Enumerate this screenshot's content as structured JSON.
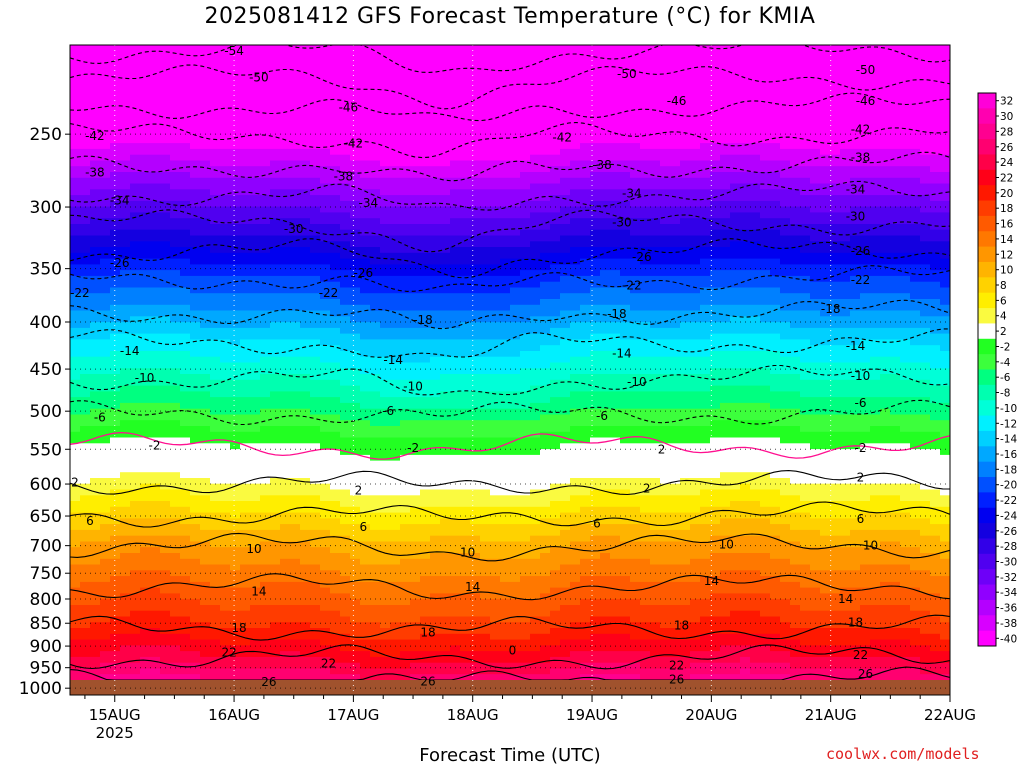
{
  "chart_data": {
    "type": "heatmap",
    "title": "2025081412 GFS Forecast Temperature (°C) for KMIA",
    "xlabel": "Forecast Time (UTC)",
    "credit": "coolwx.com/models",
    "x_ticks": [
      {
        "label": "15AUG",
        "sublabel": "2025",
        "t": 0
      },
      {
        "label": "16AUG",
        "sublabel": "",
        "t": 24
      },
      {
        "label": "17AUG",
        "sublabel": "",
        "t": 48
      },
      {
        "label": "18AUG",
        "sublabel": "",
        "t": 72
      },
      {
        "label": "19AUG",
        "sublabel": "",
        "t": 96
      },
      {
        "label": "20AUG",
        "sublabel": "",
        "t": 120
      },
      {
        "label": "21AUG",
        "sublabel": "",
        "t": 144
      },
      {
        "label": "22AUG",
        "sublabel": "",
        "t": 168
      }
    ],
    "x_range_hours_since_first_tick": [
      -9,
      168
    ],
    "y_axis": "pressure (hPa)",
    "y_ticks": [
      250,
      300,
      350,
      400,
      450,
      500,
      550,
      600,
      650,
      700,
      750,
      800,
      850,
      900,
      950,
      1000
    ],
    "y_range": [
      200,
      1030
    ],
    "log_scale_y": true,
    "grid": "dotted",
    "colorbar": {
      "labels": [
        "32",
        "30",
        "28",
        "26",
        "24",
        "22",
        "20",
        "18",
        "16",
        "14",
        "12",
        "10",
        "8",
        "6",
        "4",
        "2",
        "-2",
        "-4",
        "-6",
        "-8",
        "-10",
        "-12",
        "-14",
        "-16",
        "-18",
        "-20",
        "-22",
        "-24",
        "-26",
        "-28",
        "-30",
        "-32",
        "-34",
        "-36",
        "-38",
        "-40"
      ],
      "colors": [
        "#ff00d8",
        "#ff00b0",
        "#ff0090",
        "#ff0070",
        "#ff0048",
        "#ff0018",
        "#ff1800",
        "#ff3c00",
        "#ff5a00",
        "#ff7800",
        "#ff9600",
        "#ffb400",
        "#ffd200",
        "#ffee00",
        "#fafa40",
        "#ffffff",
        "#22ff22",
        "#3cff3c",
        "#00ff80",
        "#00ffb0",
        "#00ffd8",
        "#00f0ff",
        "#00d0ff",
        "#00a8ff",
        "#0080ff",
        "#0050ff",
        "#0020ff",
        "#0000f0",
        "#1400e0",
        "#3200e8",
        "#5000f0",
        "#6e00f8",
        "#9000ff",
        "#b400ff",
        "#d800ff",
        "#ff00ff"
      ]
    },
    "isotherm_levels_hpa": [
      {
        "temp": 26,
        "p": 980
      },
      {
        "temp": 22,
        "p": 925
      },
      {
        "temp": 18,
        "p": 860
      },
      {
        "temp": 14,
        "p": 775
      },
      {
        "temp": 10,
        "p": 700
      },
      {
        "temp": 6,
        "p": 648
      },
      {
        "temp": 2,
        "p": 598
      },
      {
        "temp": -2,
        "p": 545
      },
      {
        "temp": -6,
        "p": 502
      },
      {
        "temp": -10,
        "p": 460
      },
      {
        "temp": -14,
        "p": 420
      },
      {
        "temp": -18,
        "p": 390
      },
      {
        "temp": -22,
        "p": 358
      },
      {
        "temp": -26,
        "p": 335
      },
      {
        "temp": -30,
        "p": 312
      },
      {
        "temp": -34,
        "p": 290
      },
      {
        "temp": -38,
        "p": 270
      },
      {
        "temp": -42,
        "p": 250
      },
      {
        "temp": -46,
        "p": 233
      },
      {
        "temp": -50,
        "p": 217
      },
      {
        "temp": -54,
        "p": 203
      }
    ],
    "colorbar_labels": [
      "32",
      "30",
      "28",
      "26",
      "24",
      "22",
      "20",
      "18",
      "16",
      "14",
      "12",
      "10",
      "8",
      "6",
      "4",
      "2",
      "-2",
      "-4",
      "-6",
      "-8",
      "-10",
      "-12",
      "-14",
      "-16",
      "-18",
      "-20",
      "-22",
      "-24",
      "-26",
      "-28",
      "-30",
      "-32",
      "-34",
      "-36",
      "-38",
      "-40"
    ],
    "contour_labels": [
      {
        "text": "-54",
        "t": 24,
        "p": 203
      },
      {
        "text": "-50",
        "t": 29,
        "p": 217
      },
      {
        "text": "-50",
        "t": 103,
        "p": 215
      },
      {
        "text": "-50",
        "t": 151,
        "p": 213
      },
      {
        "text": "-46",
        "t": 47,
        "p": 234
      },
      {
        "text": "-46",
        "t": 113,
        "p": 230
      },
      {
        "text": "-46",
        "t": 151,
        "p": 230
      },
      {
        "text": "-42",
        "t": -4,
        "p": 251
      },
      {
        "text": "-42",
        "t": 48,
        "p": 256
      },
      {
        "text": "-42",
        "t": 90,
        "p": 252
      },
      {
        "text": "-42",
        "t": 150,
        "p": 247
      },
      {
        "text": "-38",
        "t": -4,
        "p": 275
      },
      {
        "text": "-38",
        "t": 46,
        "p": 278
      },
      {
        "text": "-38",
        "t": 98,
        "p": 270
      },
      {
        "text": "-38",
        "t": 150,
        "p": 265
      },
      {
        "text": "-34",
        "t": 1,
        "p": 295
      },
      {
        "text": "-34",
        "t": 51,
        "p": 297
      },
      {
        "text": "-34",
        "t": 104,
        "p": 290
      },
      {
        "text": "-34",
        "t": 149,
        "p": 287
      },
      {
        "text": "-30",
        "t": 36,
        "p": 317
      },
      {
        "text": "-30",
        "t": 102,
        "p": 312
      },
      {
        "text": "-30",
        "t": 149,
        "p": 307
      },
      {
        "text": "-26",
        "t": 1,
        "p": 345
      },
      {
        "text": "-26",
        "t": 50,
        "p": 354
      },
      {
        "text": "-26",
        "t": 106,
        "p": 340
      },
      {
        "text": "-26",
        "t": 150,
        "p": 335
      },
      {
        "text": "-22",
        "t": -7,
        "p": 372
      },
      {
        "text": "-22",
        "t": 43,
        "p": 372
      },
      {
        "text": "-22",
        "t": 104,
        "p": 365
      },
      {
        "text": "-22",
        "t": 150,
        "p": 360
      },
      {
        "text": "-18",
        "t": 62,
        "p": 398
      },
      {
        "text": "-18",
        "t": 101,
        "p": 392
      },
      {
        "text": "-18",
        "t": 144,
        "p": 387
      },
      {
        "text": "-14",
        "t": 3,
        "p": 430
      },
      {
        "text": "-14",
        "t": 56,
        "p": 440
      },
      {
        "text": "-14",
        "t": 102,
        "p": 433
      },
      {
        "text": "-14",
        "t": 149,
        "p": 425
      },
      {
        "text": "-10",
        "t": 6,
        "p": 460
      },
      {
        "text": "-10",
        "t": 60,
        "p": 470
      },
      {
        "text": "-10",
        "t": 105,
        "p": 465
      },
      {
        "text": "-10",
        "t": 150,
        "p": 458
      },
      {
        "text": "-6",
        "t": -3,
        "p": 508
      },
      {
        "text": "-6",
        "t": 55,
        "p": 500
      },
      {
        "text": "-6",
        "t": 98,
        "p": 506
      },
      {
        "text": "-6",
        "t": 150,
        "p": 490
      },
      {
        "text": "-2",
        "t": 8,
        "p": 545
      },
      {
        "text": "-2",
        "t": 60,
        "p": 548
      },
      {
        "text": "2",
        "t": 110,
        "p": 550
      },
      {
        "text": "-2",
        "t": 150,
        "p": 548
      },
      {
        "text": "2",
        "t": -8,
        "p": 598
      },
      {
        "text": "2",
        "t": 49,
        "p": 610
      },
      {
        "text": "2",
        "t": 107,
        "p": 607
      },
      {
        "text": "2",
        "t": 150,
        "p": 590
      },
      {
        "text": "6",
        "t": -5,
        "p": 658
      },
      {
        "text": "6",
        "t": 50,
        "p": 668
      },
      {
        "text": "6",
        "t": 97,
        "p": 662
      },
      {
        "text": "6",
        "t": 150,
        "p": 655
      },
      {
        "text": "10",
        "t": 28,
        "p": 706
      },
      {
        "text": "10",
        "t": 71,
        "p": 712
      },
      {
        "text": "10",
        "t": 123,
        "p": 698
      },
      {
        "text": "10",
        "t": 152,
        "p": 700
      },
      {
        "text": "14",
        "t": 29,
        "p": 785
      },
      {
        "text": "14",
        "t": 72,
        "p": 776
      },
      {
        "text": "14",
        "t": 120,
        "p": 765
      },
      {
        "text": "14",
        "t": 147,
        "p": 800
      },
      {
        "text": "18",
        "t": 25,
        "p": 860
      },
      {
        "text": "18",
        "t": 63,
        "p": 870
      },
      {
        "text": "18",
        "t": 114,
        "p": 855
      },
      {
        "text": "18",
        "t": 149,
        "p": 848
      },
      {
        "text": "22",
        "t": 23,
        "p": 915
      },
      {
        "text": "22",
        "t": 43,
        "p": 940
      },
      {
        "text": "0",
        "t": 80,
        "p": 910
      },
      {
        "text": "22",
        "t": 113,
        "p": 945
      },
      {
        "text": "22",
        "t": 150,
        "p": 920
      },
      {
        "text": "26",
        "t": 31,
        "p": 985
      },
      {
        "text": "26",
        "t": 63,
        "p": 983
      },
      {
        "text": "26",
        "t": 113,
        "p": 978
      },
      {
        "text": "26",
        "t": 151,
        "p": 965
      }
    ]
  }
}
